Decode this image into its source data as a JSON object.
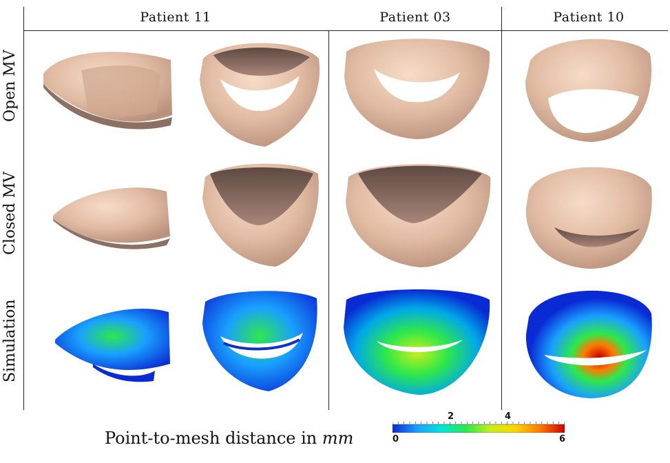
{
  "columns": {
    "patient_11": "Patient 11",
    "patient_03": "Patient 03",
    "patient_10": "Patient 10"
  },
  "rows": {
    "open": "Open MV",
    "closed": "Closed MV",
    "simulation": "Simulation"
  },
  "colorbar": {
    "caption_prefix": "Point-to-mesh distance in ",
    "caption_unit": "mm",
    "min": 0,
    "max": 6,
    "labels": [
      "0",
      "2",
      "4",
      "6"
    ],
    "colormap": [
      "#0a2bd4",
      "#19a0ff",
      "#00e7d8",
      "#2ee84a",
      "#c8ef1a",
      "#ffd400",
      "#ff7a00",
      "#d10000"
    ]
  },
  "colors": {
    "tissue_light": "#f1cdb5",
    "tissue_mid": "#d8ad95",
    "tissue_dark": "#7a6156"
  }
}
